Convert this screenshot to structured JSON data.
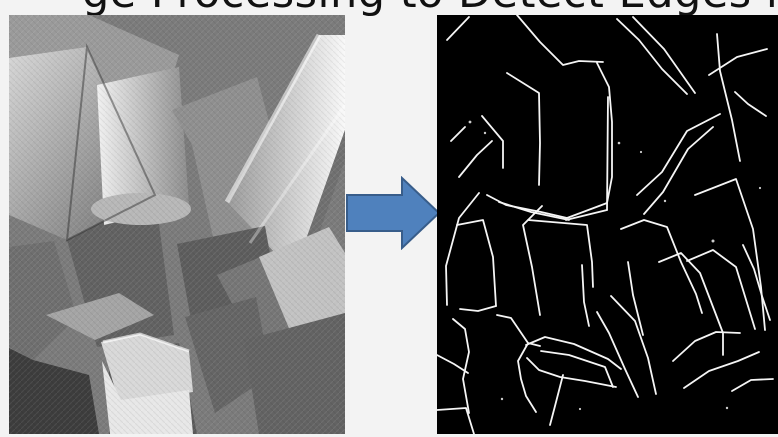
{
  "slide": {
    "title_fragment": "ge Processing to Detect Edges in Image"
  },
  "images": {
    "left": {
      "type": "photograph",
      "tone": "grayscale",
      "subject": "wooden-blocks"
    },
    "right": {
      "type": "edge-map",
      "tone": "black-white-lines",
      "subject": "block-outlines"
    }
  },
  "arrow": {
    "direction": "right",
    "fill": "#4f81bd",
    "stroke": "#385d8a"
  }
}
